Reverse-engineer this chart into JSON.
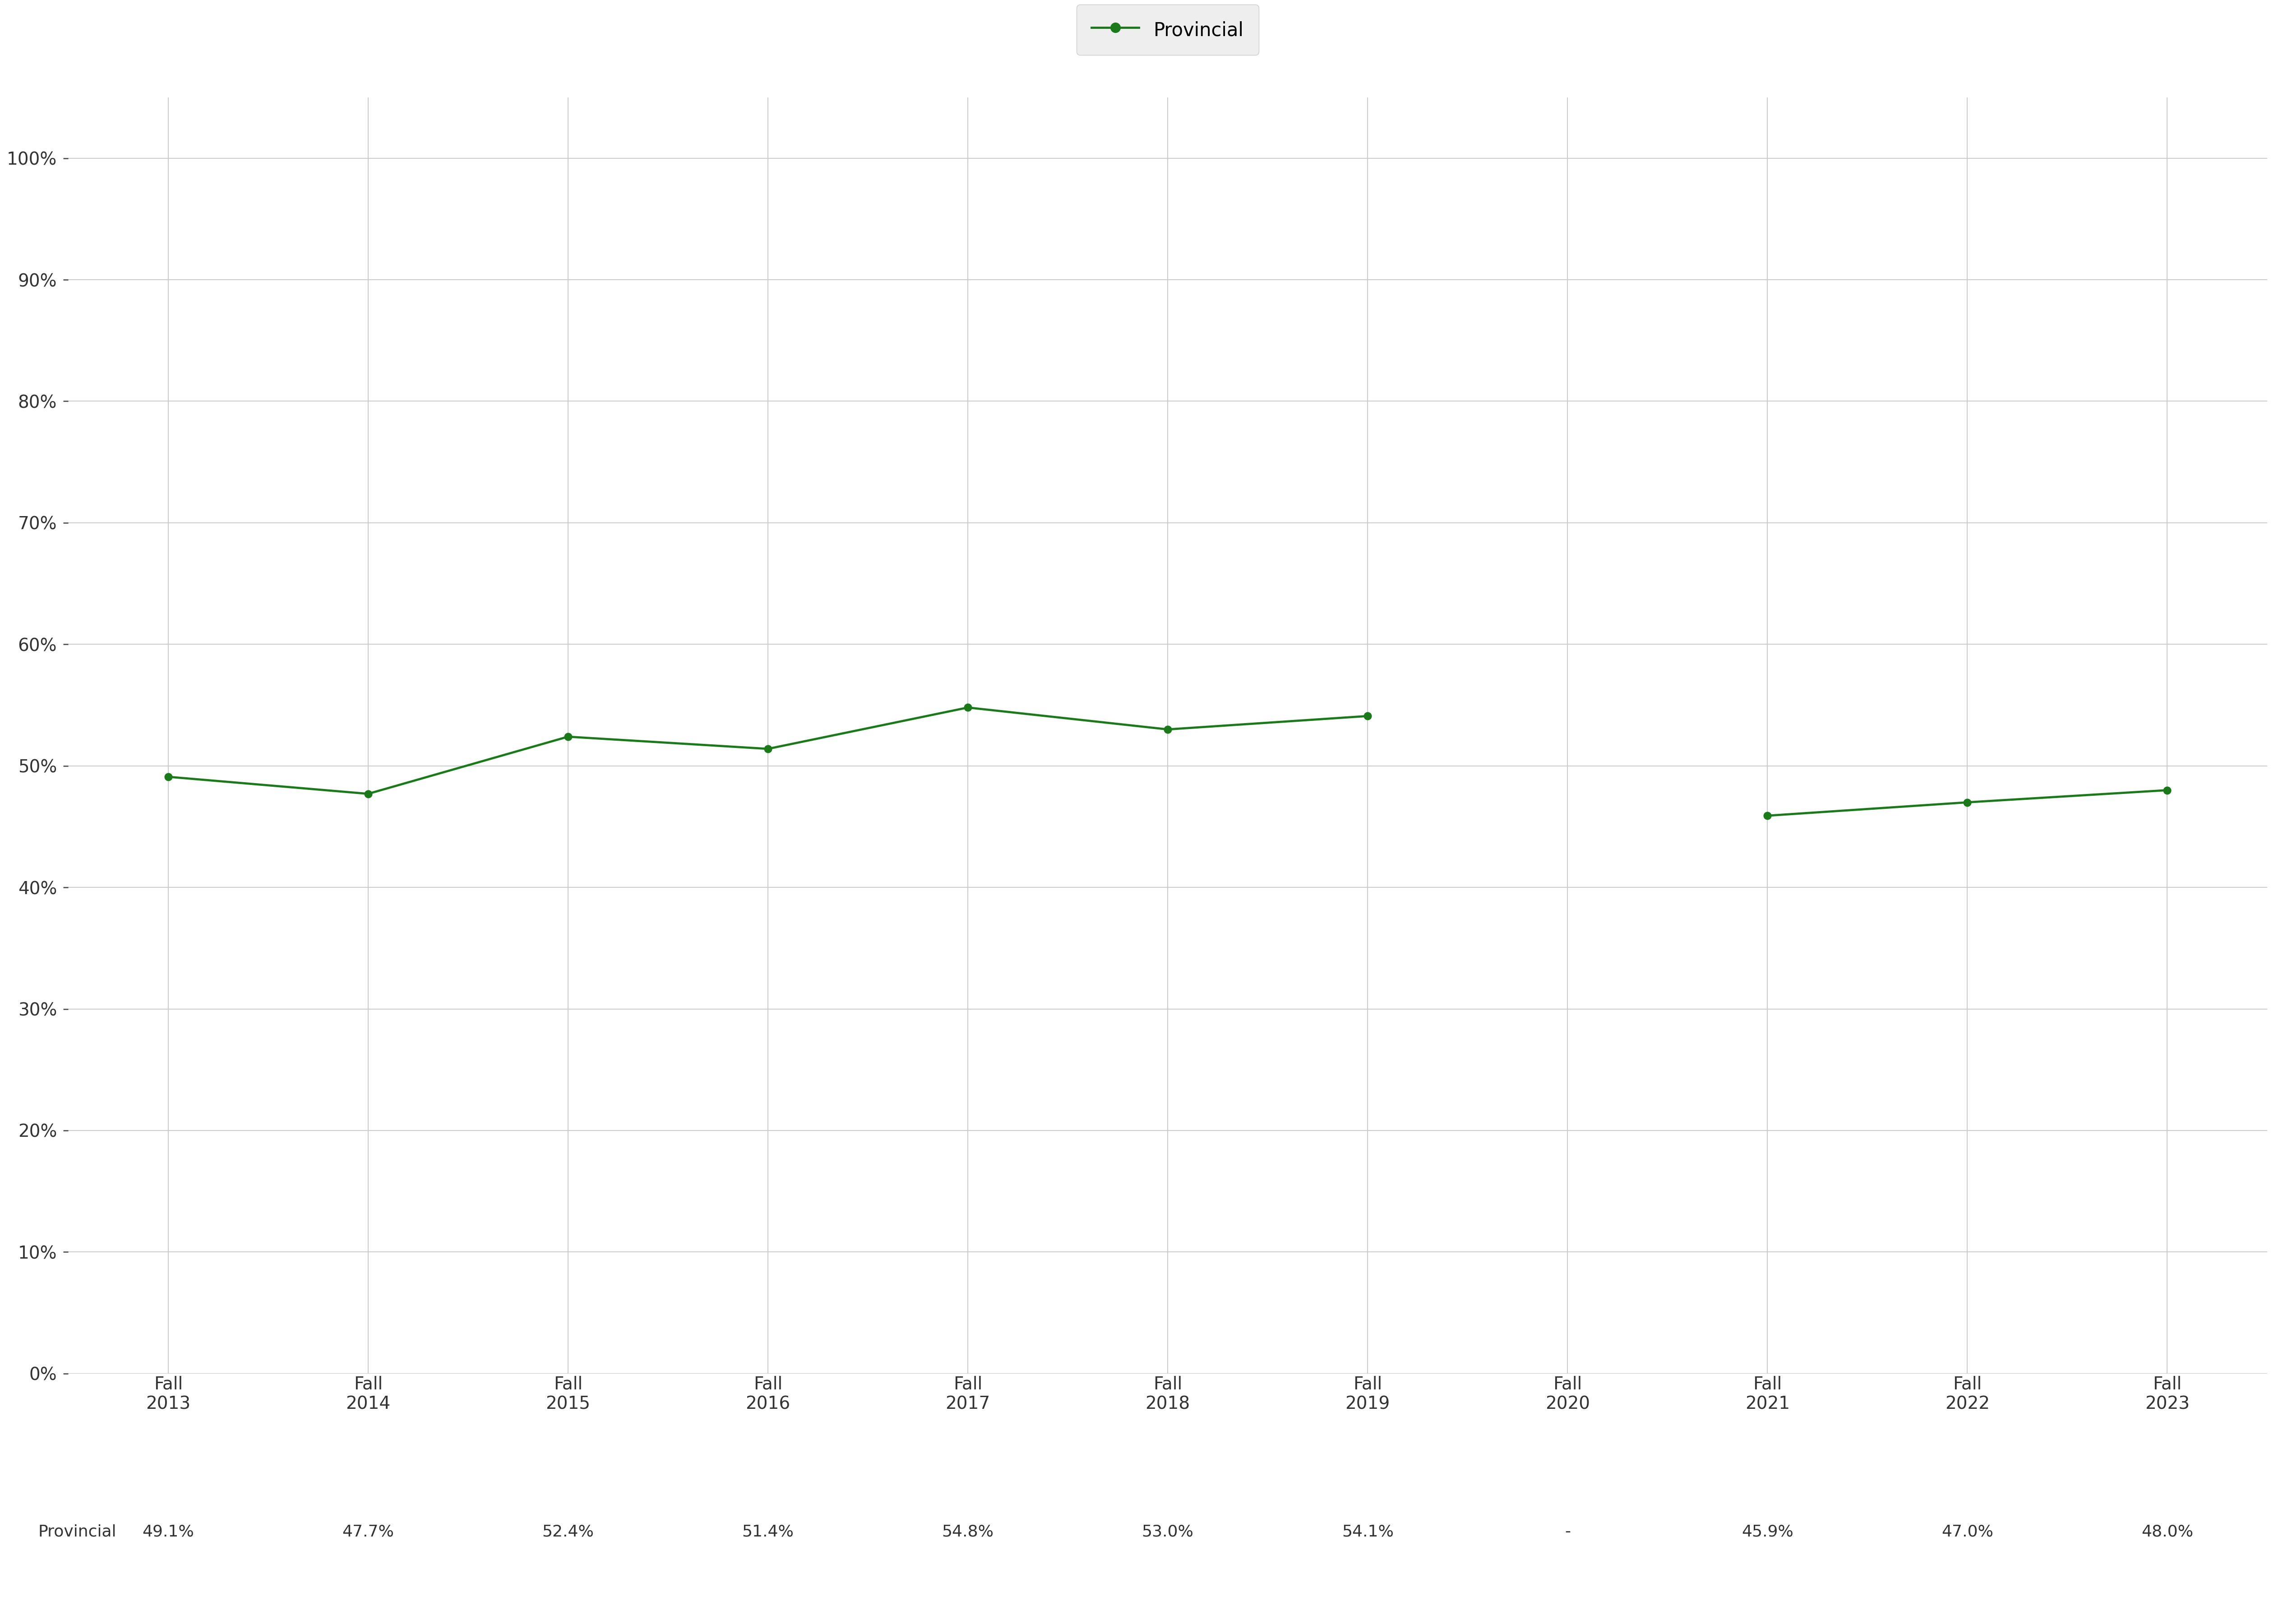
{
  "x_labels": [
    "Fall\n2013",
    "Fall\n2014",
    "Fall\n2015",
    "Fall\n2016",
    "Fall\n2017",
    "Fall\n2018",
    "Fall\n2019",
    "Fall\n2020",
    "Fall\n2021",
    "Fall\n2022",
    "Fall\n2023"
  ],
  "provincial_values": [
    49.1,
    47.7,
    52.4,
    51.4,
    54.8,
    53.0,
    54.1,
    null,
    45.9,
    47.0,
    48.0
  ],
  "provincial_labels": [
    "49.1%",
    "47.7%",
    "52.4%",
    "51.4%",
    "54.8%",
    "53.0%",
    "54.1%",
    "-",
    "45.9%",
    "47.0%",
    "48.0%"
  ],
  "line_color": "#1a7a1a",
  "marker_color": "#1a7a1a",
  "marker_style": "o",
  "marker_size": 12,
  "line_width": 3.5,
  "legend_label": "Provincial",
  "legend_box_color": "#eeeeee",
  "background_color": "#ffffff",
  "grid_color": "#cccccc",
  "tick_color": "#333333",
  "label_color": "#333333",
  "yticks": [
    0,
    10,
    20,
    30,
    40,
    50,
    60,
    70,
    80,
    90,
    100
  ],
  "ytick_labels": [
    "0%",
    "10%",
    "20%",
    "30%",
    "40%",
    "50%",
    "60%",
    "70%",
    "80%",
    "90%",
    "100%"
  ],
  "font_size_ticks": 28,
  "font_size_legend": 30,
  "font_size_bottom_label": 26,
  "font_size_bottom_values": 26
}
